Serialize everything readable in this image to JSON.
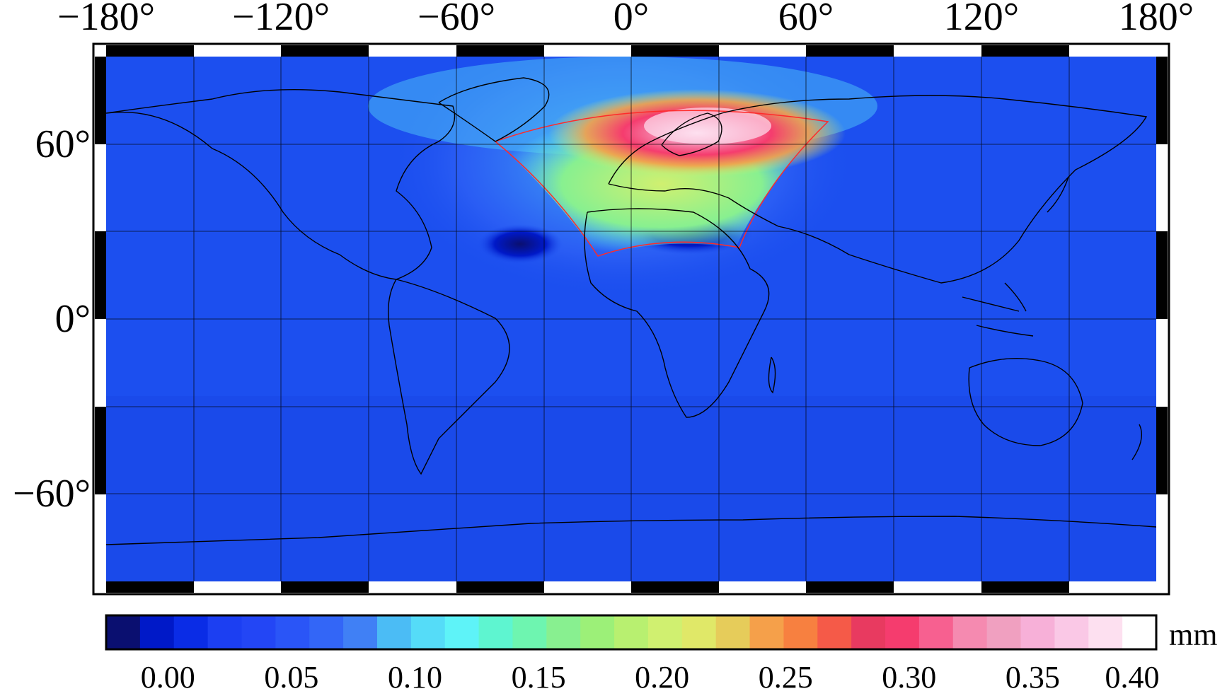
{
  "map": {
    "longitude_labels": [
      "−180°",
      "−120°",
      "−60°",
      "0°",
      "60°",
      "120°",
      "180°"
    ],
    "latitude_labels": [
      "60°",
      "0°",
      "−60°"
    ],
    "background_color": "#1c4fef",
    "coastline_color": "#000000",
    "region_outline_color": "#ff2a2a",
    "grid": "on",
    "hotspot_center": "Scandinavia / northern Europe"
  },
  "colorbar": {
    "tick_labels": [
      "0.00",
      "0.05",
      "0.10",
      "0.15",
      "0.20",
      "0.25",
      "0.30",
      "0.35",
      "0.40"
    ],
    "unit": "mm",
    "colors": [
      "#0a0f70",
      "#0019c8",
      "#0a2ce6",
      "#1c3ff2",
      "#2346f5",
      "#2a55f7",
      "#3366f7",
      "#4080f5",
      "#4bbcf5",
      "#55dcf8",
      "#5ef3f8",
      "#5ef5d0",
      "#6ef5b0",
      "#88f090",
      "#9cf078",
      "#b8f070",
      "#d0f070",
      "#e0e868",
      "#e6cc5a",
      "#f5a04a",
      "#f78040",
      "#f55a48",
      "#e83a60",
      "#f53c6e",
      "#f76090",
      "#f58ab0",
      "#f0a0c0",
      "#f7b0d8",
      "#fac8e6",
      "#fde0f0",
      "#ffffff"
    ]
  }
}
